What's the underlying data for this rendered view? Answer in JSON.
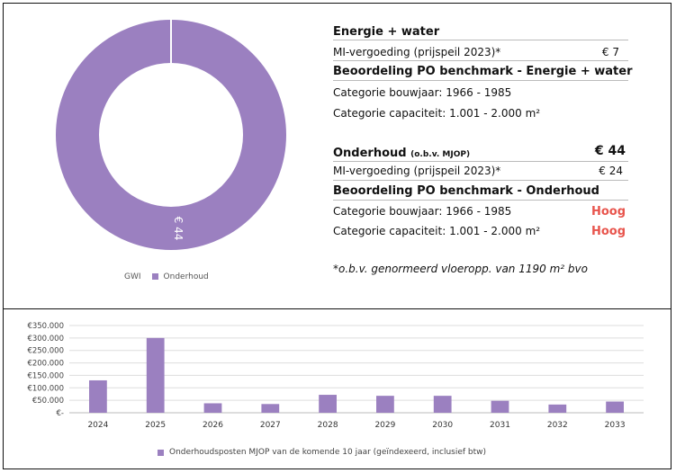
{
  "chart_data": [
    {
      "type": "pie",
      "slices": [
        {
          "name": "GWI",
          "value": 0
        },
        {
          "name": "Onderhoud",
          "value": 44
        }
      ],
      "slice_label": "€ 44",
      "legend": [
        "GWI",
        "Onderhoud"
      ],
      "colors": {
        "Onderhoud": "#9b80c0",
        "GWI": "#f2c9a5"
      }
    },
    {
      "type": "bar",
      "categories": [
        "2024",
        "2025",
        "2026",
        "2027",
        "2028",
        "2029",
        "2030",
        "2031",
        "2032",
        "2033"
      ],
      "series": [
        {
          "name": "Onderhoudsposten MJOP van de komende 10 jaar (geïndexeerd, inclusief btw)",
          "values": [
            130000,
            300000,
            38000,
            35000,
            72000,
            68000,
            68000,
            48000,
            33000,
            45000
          ]
        }
      ],
      "yticks": [
        "€-",
        "€50.000",
        "€100.000",
        "€150.000",
        "€200.000",
        "€250.000",
        "€300.000",
        "€350.000"
      ],
      "ylim": [
        0,
        350000
      ],
      "color": "#9b80c0",
      "grid": true,
      "legend_position": "bottom"
    }
  ],
  "energie": {
    "title": "Energie + water",
    "mi_label": "MI-vergoeding (prijspeil 2023)*",
    "mi_value": "€ 7",
    "bench_title": "Beoordeling PO benchmark - Energie + water",
    "bouwjaar": "Categorie bouwjaar: 1966 - 1985",
    "capaciteit": "Categorie capaciteit: 1.001 - 2.000 m²"
  },
  "onderhoud": {
    "title": "Onderhoud",
    "title_suffix": "(o.b.v. MJOP)",
    "value": "€ 44",
    "mi_label": "MI-vergoeding (prijspeil 2023)*",
    "mi_value": "€ 24",
    "bench_title": "Beoordeling PO benchmark - Onderhoud",
    "bouwjaar": "Categorie bouwjaar: 1966 - 1985",
    "bouwjaar_score": "Hoog",
    "capaciteit": "Categorie capaciteit: 1.001 - 2.000 m²",
    "capaciteit_score": "Hoog"
  },
  "footnote": "*o.b.v. genormeerd vloeropp. van 1190 m² bvo"
}
